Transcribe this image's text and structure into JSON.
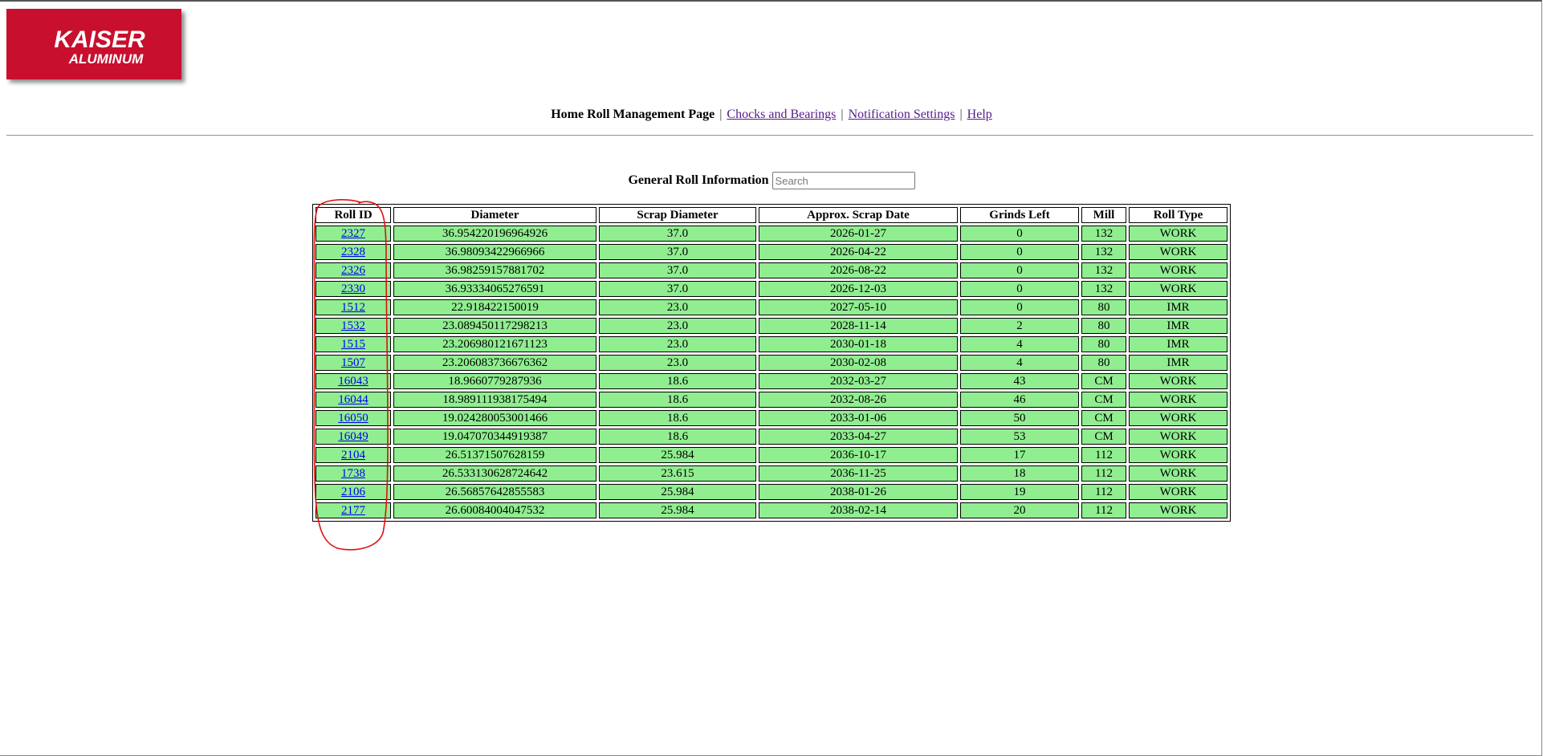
{
  "logo": {
    "line1": "KAISER",
    "line2": "ALUMINUM",
    "brand_color": "#c8102e"
  },
  "nav": {
    "current": "Home Roll Management Page",
    "separator": "|",
    "links": [
      "Chocks and Bearings",
      "Notification Settings",
      "Help"
    ]
  },
  "info": {
    "label": "General Roll Information",
    "search_placeholder": "Search"
  },
  "table": {
    "headers": [
      "Roll ID",
      "Diameter",
      "Scrap Diameter",
      "Approx. Scrap Date",
      "Grinds Left",
      "Mill",
      "Roll Type"
    ],
    "rows": [
      [
        "2327",
        "36.954220196964926",
        "37.0",
        "2026-01-27",
        "0",
        "132",
        "WORK"
      ],
      [
        "2328",
        "36.98093422966966",
        "37.0",
        "2026-04-22",
        "0",
        "132",
        "WORK"
      ],
      [
        "2326",
        "36.98259157881702",
        "37.0",
        "2026-08-22",
        "0",
        "132",
        "WORK"
      ],
      [
        "2330",
        "36.93334065276591",
        "37.0",
        "2026-12-03",
        "0",
        "132",
        "WORK"
      ],
      [
        "1512",
        "22.918422150019",
        "23.0",
        "2027-05-10",
        "0",
        "80",
        "IMR"
      ],
      [
        "1532",
        "23.089450117298213",
        "23.0",
        "2028-11-14",
        "2",
        "80",
        "IMR"
      ],
      [
        "1515",
        "23.206980121671123",
        "23.0",
        "2030-01-18",
        "4",
        "80",
        "IMR"
      ],
      [
        "1507",
        "23.206083736676362",
        "23.0",
        "2030-02-08",
        "4",
        "80",
        "IMR"
      ],
      [
        "16043",
        "18.9660779287936",
        "18.6",
        "2032-03-27",
        "43",
        "CM",
        "WORK"
      ],
      [
        "16044",
        "18.989111938175494",
        "18.6",
        "2032-08-26",
        "46",
        "CM",
        "WORK"
      ],
      [
        "16050",
        "19.024280053001466",
        "18.6",
        "2033-01-06",
        "50",
        "CM",
        "WORK"
      ],
      [
        "16049",
        "19.047070344919387",
        "18.6",
        "2033-04-27",
        "53",
        "CM",
        "WORK"
      ],
      [
        "2104",
        "26.51371507628159",
        "25.984",
        "2036-10-17",
        "17",
        "112",
        "WORK"
      ],
      [
        "1738",
        "26.533130628724642",
        "23.615",
        "2036-11-25",
        "18",
        "112",
        "WORK"
      ],
      [
        "2106",
        "26.56857642855583",
        "25.984",
        "2038-01-26",
        "19",
        "112",
        "WORK"
      ],
      [
        "2177",
        "26.60084004047532",
        "25.984",
        "2038-02-14",
        "20",
        "112",
        "WORK"
      ]
    ]
  },
  "colors": {
    "row_bg": "#90ee90",
    "link": "#0000ee",
    "visited_link": "#551a8b",
    "annotation": "#e01010"
  }
}
